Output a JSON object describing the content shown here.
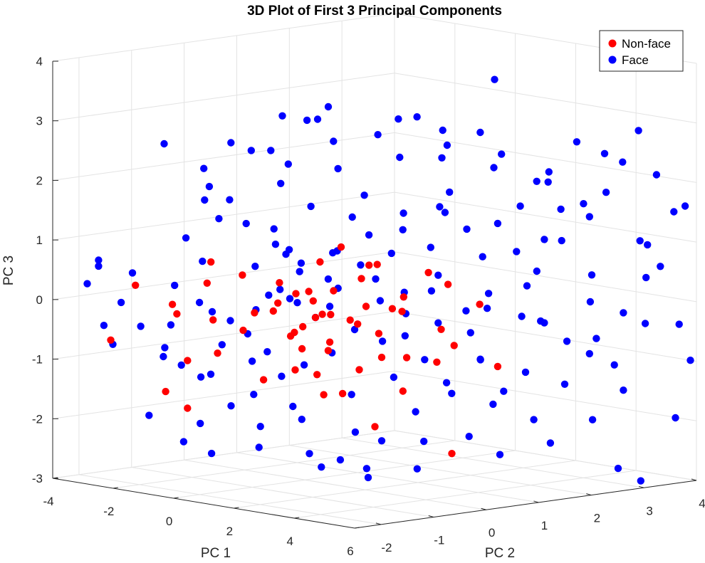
{
  "chart_data": {
    "type": "scatter3d",
    "title": "3D Plot of First 3 Principal Components",
    "xlabel": "PC 1",
    "ylabel": "PC 2",
    "zlabel": "PC 3",
    "xlim": [
      -4,
      6
    ],
    "ylim": [
      -2.5,
      4
    ],
    "zlim": [
      -3,
      4
    ],
    "x_ticks": [
      "-4",
      "-2",
      "0",
      "2",
      "4",
      "6"
    ],
    "y_ticks": [
      "-2",
      "-1",
      "0",
      "1",
      "2",
      "3",
      "4"
    ],
    "z_ticks": [
      "-3",
      "-2",
      "-1",
      "0",
      "1",
      "2",
      "3",
      "4"
    ],
    "grid": true,
    "legend_position": "top-right",
    "series": [
      {
        "name": "Non-face",
        "color": "#ff0000",
        "points": [
          [
            -3.0,
            -1.5,
            0.2
          ],
          [
            -2.5,
            -1.0,
            -0.3
          ],
          [
            -2.3,
            -1.2,
            -0.1
          ],
          [
            -1.5,
            -1.0,
            0.3
          ],
          [
            -1.2,
            -0.5,
            0.4
          ],
          [
            -0.5,
            -1.5,
            0.8
          ],
          [
            -0.8,
            -0.5,
            -0.2
          ],
          [
            -0.3,
            0.0,
            0.1
          ],
          [
            0.2,
            -0.6,
            0.4
          ],
          [
            0.5,
            0.0,
            0.7
          ],
          [
            0.8,
            -0.5,
            -0.3
          ],
          [
            1.0,
            0.5,
            0.4
          ],
          [
            1.2,
            -0.2,
            -0.1
          ],
          [
            1.5,
            0.3,
            0.0
          ],
          [
            0.0,
            -0.2,
            -0.5
          ],
          [
            0.4,
            0.1,
            -0.2
          ],
          [
            0.6,
            -0.4,
            -0.7
          ],
          [
            -1.8,
            -1.2,
            -1.0
          ],
          [
            -1.5,
            -0.8,
            -0.9
          ],
          [
            -2.0,
            -1.5,
            -1.5
          ],
          [
            -1.8,
            -1.2,
            -1.8
          ],
          [
            -0.5,
            -0.5,
            -1.3
          ],
          [
            0.2,
            -0.3,
            -1.1
          ],
          [
            0.4,
            0.0,
            -1.2
          ],
          [
            1.8,
            0.0,
            -1.0
          ],
          [
            2.5,
            0.5,
            -0.8
          ],
          [
            2.8,
            0.9,
            -0.9
          ],
          [
            3.2,
            1.0,
            -0.6
          ],
          [
            3.0,
            1.6,
            0.0
          ],
          [
            1.5,
            0.8,
            -0.1
          ],
          [
            0.8,
            0.4,
            -0.3
          ],
          [
            0.1,
            0.1,
            0.0
          ],
          [
            -0.2,
            -0.4,
            0.0
          ],
          [
            0.6,
            0.2,
            0.2
          ],
          [
            1.0,
            0.8,
            0.6
          ],
          [
            2.0,
            1.2,
            0.5
          ],
          [
            1.7,
            0.9,
            0.1
          ],
          [
            0.3,
            0.3,
            -0.7
          ],
          [
            0.9,
            0.2,
            -1.5
          ],
          [
            2.2,
            0.6,
            -1.4
          ],
          [
            2.6,
            1.3,
            -2.5
          ],
          [
            1.1,
            0.7,
            -2.1
          ],
          [
            0.1,
            0.3,
            -1.6
          ],
          [
            -0.3,
            -0.1,
            -0.6
          ],
          [
            0.7,
            0.6,
            -0.4
          ],
          [
            1.3,
            1.1,
            -0.2
          ],
          [
            0.0,
            0.2,
            -0.3
          ],
          [
            -1.0,
            -0.6,
            -0.5
          ],
          [
            -0.7,
            -0.2,
            -0.2
          ],
          [
            0.5,
            0.4,
            0.9
          ],
          [
            1.6,
            0.3,
            0.7
          ],
          [
            1.9,
            1.5,
            -0.5
          ],
          [
            -2.6,
            -2.2,
            -0.6
          ],
          [
            2.9,
            2.0,
            -1.1
          ],
          [
            0.3,
            -0.1,
            0.2
          ],
          [
            1.4,
            0.6,
            -0.5
          ],
          [
            -0.1,
            0.5,
            -0.9
          ],
          [
            2.3,
            1.4,
            0.3
          ],
          [
            -1.3,
            -1.0,
            -0.3
          ],
          [
            0.8,
            1.0,
            -1.0
          ]
        ]
      },
      {
        "name": "Face",
        "color": "#0000ff",
        "points": [
          [
            -3.9,
            -1.9,
            0.2
          ],
          [
            -3.7,
            -1.8,
            0.5
          ],
          [
            -3.7,
            -1.8,
            0.6
          ],
          [
            -3.1,
            -1.5,
            0.4
          ],
          [
            -3.0,
            -2.1,
            -0.4
          ],
          [
            -3.0,
            -1.4,
            -0.5
          ],
          [
            -2.7,
            -1.0,
            -0.5
          ],
          [
            -2.6,
            -1.2,
            -1.0
          ],
          [
            -2.7,
            -0.8,
            -1.2
          ],
          [
            -2.9,
            -1.3,
            -2.0
          ],
          [
            -2.2,
            -0.5,
            -0.3
          ],
          [
            -2.0,
            -0.8,
            0.6
          ],
          [
            -2.5,
            -0.2,
            1.2
          ],
          [
            -2.8,
            -0.3,
            1.5
          ],
          [
            -3.0,
            -0.2,
            2.0
          ],
          [
            -2.8,
            0.2,
            2.4
          ],
          [
            -2.3,
            0.3,
            2.3
          ],
          [
            -2.0,
            0.5,
            2.3
          ],
          [
            -1.5,
            0.4,
            1.8
          ],
          [
            -1.5,
            0.9,
            2.8
          ],
          [
            -0.8,
            0.7,
            2.9
          ],
          [
            -0.3,
            0.8,
            2.1
          ],
          [
            0.7,
            1.4,
            2.3
          ],
          [
            1.4,
            1.8,
            2.3
          ],
          [
            1.8,
            2.3,
            2.7
          ],
          [
            2.1,
            2.4,
            3.6
          ],
          [
            1.4,
            1.9,
            2.5
          ],
          [
            2.6,
            2.1,
            2.2
          ],
          [
            2.8,
            2.8,
            1.9
          ],
          [
            1.5,
            1.7,
            1.5
          ],
          [
            1.0,
            1.3,
            1.4
          ],
          [
            0.0,
            0.9,
            1.3
          ],
          [
            -0.8,
            -0.1,
            0.9
          ],
          [
            -0.3,
            0.7,
            0.7
          ],
          [
            -1.3,
            -0.2,
            0.5
          ],
          [
            -1.5,
            0.5,
            0.6
          ],
          [
            -1.0,
            0.1,
            0.1
          ],
          [
            -0.6,
            0.2,
            -0.1
          ],
          [
            -0.1,
            0.5,
            0.3
          ],
          [
            0.6,
            1.0,
            0.3
          ],
          [
            1.2,
            1.2,
            0.1
          ],
          [
            1.8,
            1.5,
            0.4
          ],
          [
            2.4,
            2.0,
            0.7
          ],
          [
            3.0,
            2.3,
            0.8
          ],
          [
            3.4,
            2.6,
            1.0
          ],
          [
            3.6,
            2.8,
            1.5
          ],
          [
            4.0,
            3.0,
            1.6
          ],
          [
            4.4,
            3.2,
            1.8
          ],
          [
            4.2,
            3.0,
            1.4
          ],
          [
            3.8,
            2.7,
            1.0
          ],
          [
            4.6,
            3.4,
            2.3
          ],
          [
            5.2,
            3.7,
            2.1
          ],
          [
            5.6,
            3.8,
            1.5
          ],
          [
            5.0,
            3.5,
            1.0
          ],
          [
            5.8,
            3.9,
            1.6
          ],
          [
            5.5,
            3.6,
            0.6
          ],
          [
            5.2,
            3.5,
            0.4
          ],
          [
            4.8,
            3.3,
            -0.2
          ],
          [
            5.0,
            3.6,
            -0.4
          ],
          [
            5.6,
            3.9,
            -0.4
          ],
          [
            5.8,
            4.0,
            -1.0
          ],
          [
            6.0,
            3.6,
            -1.9
          ],
          [
            4.8,
            3.3,
            -1.5
          ],
          [
            4.2,
            3.0,
            -0.9
          ],
          [
            3.8,
            2.8,
            -0.7
          ],
          [
            3.4,
            2.6,
            -0.4
          ],
          [
            3.0,
            2.4,
            -0.3
          ],
          [
            2.6,
            2.0,
            0.1
          ],
          [
            2.2,
            1.8,
            -0.2
          ],
          [
            1.8,
            1.5,
            -0.4
          ],
          [
            1.4,
            1.1,
            -0.6
          ],
          [
            1.0,
            0.9,
            -0.7
          ],
          [
            0.6,
            0.6,
            -0.5
          ],
          [
            0.2,
            0.4,
            -0.9
          ],
          [
            -0.2,
            0.1,
            -1.1
          ],
          [
            -0.6,
            -0.1,
            -1.3
          ],
          [
            -1.0,
            -0.4,
            -1.6
          ],
          [
            -1.4,
            -0.6,
            -1.8
          ],
          [
            -1.9,
            -0.9,
            -2.1
          ],
          [
            -2.1,
            -1.1,
            -2.4
          ],
          [
            -1.7,
            -0.8,
            -2.6
          ],
          [
            -1.0,
            -0.3,
            -2.5
          ],
          [
            -0.2,
            0.2,
            -2.6
          ],
          [
            0.3,
            0.5,
            -2.7
          ],
          [
            0.7,
            0.8,
            -3.0
          ],
          [
            1.5,
            1.4,
            -2.4
          ],
          [
            2.3,
            1.8,
            -2.3
          ],
          [
            2.8,
            2.1,
            -2.6
          ],
          [
            3.4,
            2.4,
            -2.0
          ],
          [
            4.3,
            3.0,
            -2.0
          ],
          [
            4.8,
            3.2,
            -2.8
          ],
          [
            5.2,
            3.4,
            -3.0
          ],
          [
            3.9,
            2.7,
            -1.4
          ],
          [
            3.3,
            2.3,
            -1.2
          ],
          [
            2.5,
            1.9,
            -1.0
          ],
          [
            1.7,
            1.3,
            -1.0
          ],
          [
            1.2,
            1.0,
            -1.3
          ],
          [
            0.5,
            0.6,
            -1.6
          ],
          [
            -0.4,
            0.0,
            -1.8
          ],
          [
            -0.9,
            -0.2,
            -0.9
          ],
          [
            -1.2,
            -0.4,
            -0.6
          ],
          [
            -1.7,
            -0.6,
            -0.8
          ],
          [
            -2.1,
            -0.8,
            -0.1
          ],
          [
            -1.1,
            -0.3,
            -0.2
          ],
          [
            -0.5,
            0.0,
            0.0
          ],
          [
            0.0,
            0.2,
            -0.3
          ],
          [
            0.4,
            0.4,
            0.2
          ],
          [
            0.8,
            0.6,
            0.6
          ],
          [
            1.3,
            0.9,
            0.8
          ],
          [
            1.9,
            1.3,
            0.9
          ],
          [
            2.4,
            1.7,
            1.2
          ],
          [
            2.9,
            2.0,
            1.3
          ],
          [
            3.3,
            2.2,
            1.6
          ],
          [
            3.7,
            2.5,
            2.0
          ],
          [
            2.0,
            1.6,
            1.8
          ],
          [
            0.4,
            0.9,
            1.7
          ],
          [
            -0.5,
            0.4,
            1.5
          ],
          [
            -1.2,
            0.1,
            1.1
          ],
          [
            -0.7,
            0.3,
            0.4
          ],
          [
            0.2,
            0.5,
            0.8
          ],
          [
            1.6,
            1.0,
            -0.2
          ],
          [
            2.7,
            1.6,
            -0.5
          ],
          [
            3.1,
            2.0,
            -1.5
          ],
          [
            3.6,
            2.6,
            -2.4
          ],
          [
            4.5,
            3.3,
            -1.1
          ],
          [
            -2.2,
            -1.0,
            1.0
          ],
          [
            -1.8,
            -0.4,
            1.6
          ],
          [
            -0.9,
            0.2,
            2.2
          ],
          [
            -0.1,
            0.6,
            2.6
          ],
          [
            0.5,
            1.1,
            2.7
          ],
          [
            1.1,
            1.5,
            3.0
          ],
          [
            -1.9,
            -0.7,
            -1.3
          ],
          [
            -1.4,
            -0.2,
            -1.1
          ],
          [
            -0.8,
            0.4,
            -2.1
          ],
          [
            0.1,
            0.9,
            -2.3
          ],
          [
            1.9,
            1.7,
            -1.6
          ],
          [
            2.4,
            2.2,
            -1.8
          ],
          [
            3.0,
            2.5,
            0.2
          ],
          [
            4.1,
            3.1,
            0.4
          ],
          [
            4.9,
            3.7,
            0.9
          ],
          [
            -3.3,
            -1.6,
            -0.1
          ],
          [
            -3.4,
            -1.7,
            -0.8
          ],
          [
            -2.4,
            -1.1,
            0.2
          ],
          [
            -1.6,
            -0.5,
            -0.4
          ],
          [
            -0.3,
            0.1,
            0.6
          ],
          [
            0.9,
            0.7,
            1.1
          ],
          [
            1.5,
            1.0,
            1.2
          ],
          [
            2.2,
            1.4,
            1.5
          ],
          [
            3.5,
            2.4,
            0.5
          ],
          [
            4.4,
            2.9,
            0.0
          ],
          [
            -1.2,
            0.0,
            0.0
          ],
          [
            0.3,
            0.3,
            -0.1
          ],
          [
            1.1,
            0.8,
            0.0
          ],
          [
            2.1,
            1.2,
            0.2
          ],
          [
            2.9,
            1.8,
            -0.1
          ],
          [
            3.8,
            2.3,
            -0.3
          ],
          [
            4.6,
            2.9,
            -0.6
          ],
          [
            1.4,
            1.3,
            -1.9
          ],
          [
            0.8,
            1.0,
            -2.4
          ],
          [
            -0.5,
            0.6,
            -2.9
          ],
          [
            -1.3,
            -0.1,
            -2.2
          ],
          [
            -2.4,
            -0.6,
            -1.4
          ],
          [
            -2.9,
            -1.0,
            -0.9
          ],
          [
            2.6,
            1.2,
            -1.3
          ],
          [
            3.2,
            1.5,
            -0.9
          ],
          [
            0.0,
            -0.3,
            0.9
          ],
          [
            -0.9,
            -0.6,
            1.3
          ],
          [
            -1.6,
            -0.9,
            1.9
          ],
          [
            -2.4,
            -1.3,
            2.6
          ],
          [
            -0.4,
            -0.2,
            3.1
          ],
          [
            0.6,
            0.1,
            3.3
          ],
          [
            1.7,
            0.8,
            3.1
          ],
          [
            2.3,
            1.3,
            2.9
          ],
          [
            3.2,
            1.9,
            2.5
          ],
          [
            3.9,
            2.4,
            2.2
          ],
          [
            4.3,
            2.7,
            2.7
          ],
          [
            5.3,
            3.3,
            2.9
          ],
          [
            4.7,
            3.0,
            2.5
          ],
          [
            1.0,
            0.6,
            -2.8
          ],
          [
            1.8,
            1.1,
            -2.8
          ]
        ]
      }
    ]
  }
}
